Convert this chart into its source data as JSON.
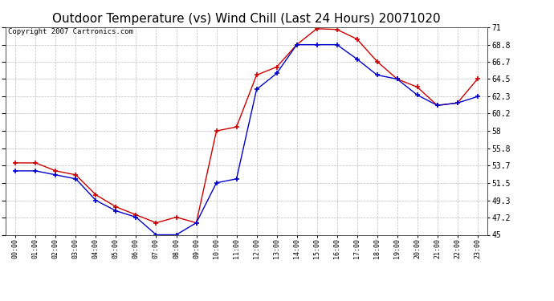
{
  "title": "Outdoor Temperature (vs) Wind Chill (Last 24 Hours) 20071020",
  "copyright": "Copyright 2007 Cartronics.com",
  "hours": [
    "00:00",
    "01:00",
    "02:00",
    "03:00",
    "04:00",
    "05:00",
    "06:00",
    "07:00",
    "08:00",
    "09:00",
    "10:00",
    "11:00",
    "12:00",
    "13:00",
    "14:00",
    "15:00",
    "16:00",
    "17:00",
    "18:00",
    "19:00",
    "20:00",
    "21:00",
    "22:00",
    "23:00"
  ],
  "temp": [
    54.0,
    54.0,
    53.0,
    52.5,
    50.0,
    48.5,
    47.5,
    46.5,
    47.2,
    46.5,
    58.0,
    58.5,
    65.0,
    66.0,
    68.8,
    70.8,
    70.7,
    69.5,
    66.7,
    64.5,
    63.5,
    61.2,
    61.5,
    64.5
  ],
  "windchill": [
    53.0,
    53.0,
    52.5,
    52.0,
    49.3,
    48.0,
    47.2,
    45.0,
    45.0,
    46.5,
    51.5,
    52.0,
    63.2,
    65.2,
    68.8,
    68.8,
    68.8,
    67.0,
    65.0,
    64.5,
    62.5,
    61.2,
    61.5,
    62.3
  ],
  "temp_color": "#cc0000",
  "windchill_color": "#0000cc",
  "ylim_min": 45.0,
  "ylim_max": 71.0,
  "yticks": [
    45.0,
    47.2,
    49.3,
    51.5,
    53.7,
    55.8,
    58.0,
    60.2,
    62.3,
    64.5,
    66.7,
    68.8,
    71.0
  ],
  "background_color": "#ffffff",
  "plot_bg_color": "#ffffff",
  "grid_color": "#bbbbbb",
  "title_fontsize": 11,
  "copyright_fontsize": 6.5
}
